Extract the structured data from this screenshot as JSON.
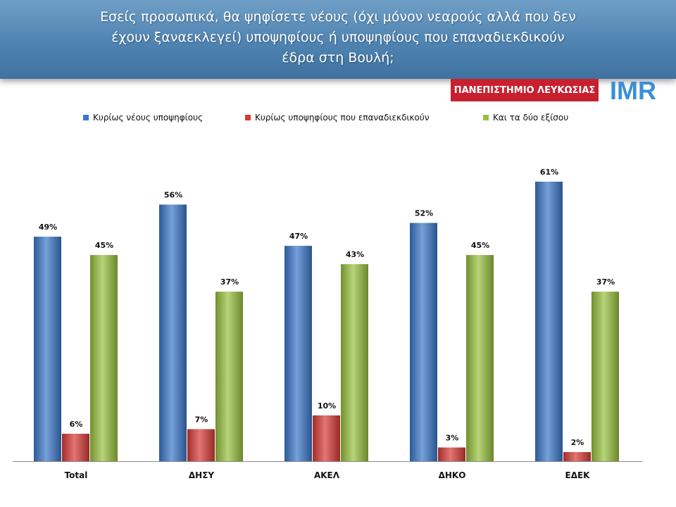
{
  "header": {
    "title_line1": "Εσείς προσωπικά, θα ψηφίσετε νέους (όχι μόνον νεαρούς αλλά που δεν",
    "title_line2": "έχουν ξαναεκλεγεί) υποψηφίους ή υποψηφίους που επαναδιεκδικούν",
    "title_line3": "έδρα στη Βουλή;"
  },
  "logos": {
    "university": "ΠΑΝΕΠΙΣΤΗΜΙΟ ΛΕΥΚΩΣΙΑΣ",
    "imr": "IMR"
  },
  "colors": {
    "series1": "#3a78c9",
    "series2": "#d83a36",
    "series3": "#98c13f"
  },
  "chart_data": {
    "type": "bar",
    "categories": [
      "Total",
      "ΔΗΣΥ",
      "ΑΚΕΛ",
      "ΔΗΚΟ",
      "ΕΔΕΚ"
    ],
    "series": [
      {
        "name": "Κυρίως νέους υποψηφίους",
        "values": [
          49,
          56,
          47,
          52,
          61
        ],
        "labels": [
          "49%",
          "56%",
          "47%",
          "52%",
          "61%"
        ]
      },
      {
        "name": "Κυρίως υποψηφίους που επαναδιεκδικούν",
        "values": [
          6,
          7,
          10,
          3,
          2
        ],
        "labels": [
          "6%",
          "7%",
          "10%",
          "3%",
          "2%"
        ]
      },
      {
        "name": "Και τα δύο εξίσου",
        "values": [
          45,
          37,
          43,
          45,
          37
        ],
        "labels": [
          "45%",
          "37%",
          "43%",
          "45%",
          "37%"
        ]
      }
    ],
    "ylim": [
      0,
      80
    ],
    "legend_position": "top",
    "grid": false
  }
}
